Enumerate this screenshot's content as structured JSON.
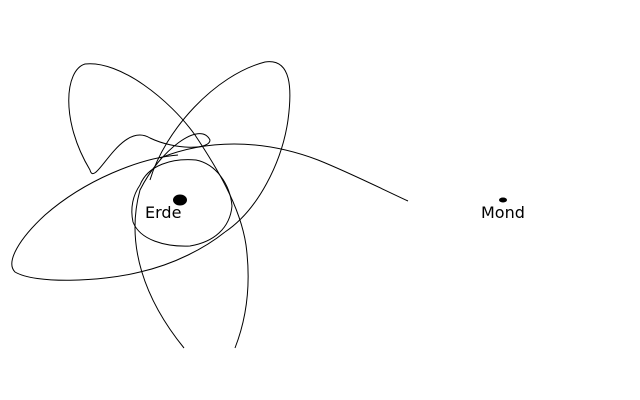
{
  "labels": {
    "earth": "Erde",
    "moon": "Mond"
  },
  "colors": {
    "ink": "#000000",
    "background": "#ffffff"
  }
}
